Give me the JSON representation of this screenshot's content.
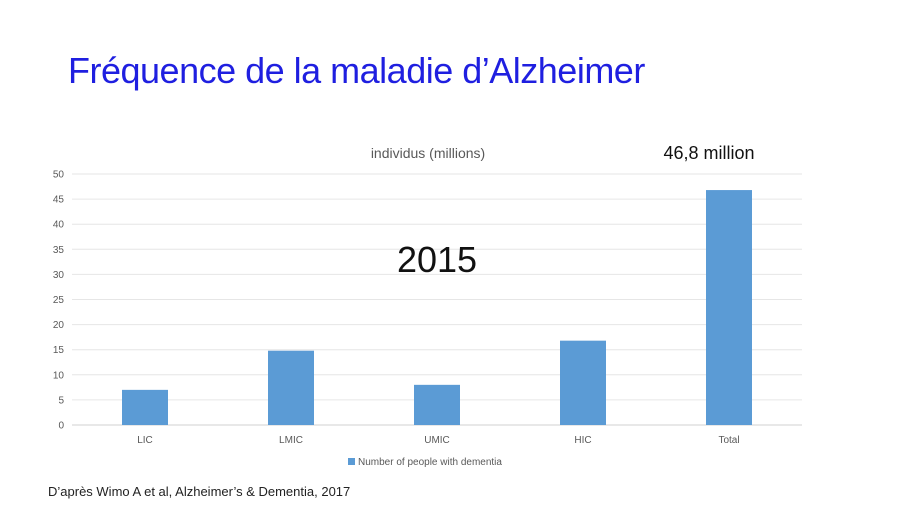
{
  "slide": {
    "title": "Fréquence de la maladie d’Alzheimer",
    "source": "D’après Wimo A et al, Alzheimer’s & Dementia, 2017"
  },
  "chart_data": {
    "type": "bar",
    "title": "individus (millions)",
    "annotations": {
      "total": "46,8 million",
      "year": "2015"
    },
    "categories": [
      "LIC",
      "LMIC",
      "UMIC",
      "HIC",
      "Total"
    ],
    "series": [
      {
        "name": "Number of people with dementia",
        "values": [
          7,
          14.8,
          8,
          16.8,
          46.8
        ]
      }
    ],
    "yticks": [
      "0",
      "5",
      "10",
      "15",
      "20",
      "25",
      "30",
      "35",
      "40",
      "45",
      "50"
    ],
    "ylim": [
      0,
      50
    ],
    "grid": true,
    "legend_position": "bottom",
    "bar_color": "#5b9bd5",
    "title_color": "#1f1fe0"
  }
}
